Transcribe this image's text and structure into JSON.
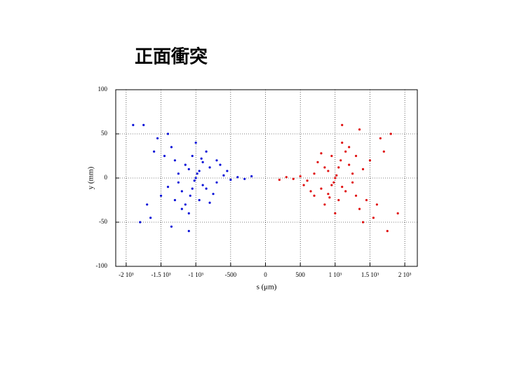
{
  "chart_data": {
    "type": "scatter",
    "title": "正面衝突",
    "xlabel": "s (μm)",
    "ylabel": "y (mm)",
    "xlim": [
      -2150,
      2180
    ],
    "ylim": [
      -100,
      100
    ],
    "xticks": [
      {
        "value": -2000,
        "label": "-2 10³"
      },
      {
        "value": -1500,
        "label": "-1.5 10³"
      },
      {
        "value": -1000,
        "label": "-1 10³"
      },
      -500,
      0,
      500,
      {
        "value": 1000,
        "label": "1 10³"
      },
      {
        "value": 1500,
        "label": "1.5 10³"
      },
      {
        "value": 2000,
        "label": "2 10³"
      }
    ],
    "yticks": [
      -100,
      -50,
      0,
      50,
      100
    ],
    "grid": true,
    "series": [
      {
        "color": "#0a12d8",
        "x": [
          -1000,
          -1100,
          -900,
          -1200,
          -800,
          -1050,
          -950,
          -1300,
          -700,
          -1150,
          -850,
          -1250,
          -600,
          -1400,
          -750,
          -1350,
          -650,
          -1100,
          -1000,
          -500,
          -1450,
          -900,
          -1200,
          -550,
          -1300,
          -800,
          -1500,
          -400,
          -1600,
          -1050,
          -950,
          -1150,
          -850,
          -1250,
          -700,
          -1700,
          -300,
          -1550,
          -1650,
          -1400,
          -1750,
          -1900,
          -1800,
          -1350,
          -1100,
          -200,
          -1020,
          -980,
          -1080,
          -920
        ],
        "values": [
          0,
          10,
          -8,
          -15,
          12,
          25,
          -25,
          20,
          -5,
          -30,
          30,
          5,
          3,
          -10,
          -18,
          35,
          15,
          -40,
          40,
          -2,
          25,
          18,
          -35,
          8,
          -25,
          -28,
          -20,
          1,
          30,
          -12,
          8,
          15,
          -12,
          -5,
          20,
          -30,
          -1,
          45,
          -45,
          50,
          60,
          60,
          -50,
          -55,
          -60,
          2,
          -3,
          5,
          -20,
          22
        ]
      },
      {
        "color": "#e01010",
        "x": [
          1000,
          1100,
          900,
          1200,
          800,
          1050,
          950,
          1300,
          700,
          1150,
          850,
          1250,
          600,
          1400,
          750,
          1350,
          650,
          1100,
          1000,
          500,
          1450,
          900,
          1200,
          550,
          1300,
          800,
          1500,
          400,
          1600,
          1050,
          950,
          1150,
          850,
          1250,
          700,
          1700,
          300,
          1550,
          1650,
          1400,
          1750,
          1900,
          1800,
          1350,
          1100,
          200,
          1020,
          980,
          1080,
          920
        ],
        "values": [
          0,
          -10,
          8,
          15,
          -12,
          -25,
          25,
          -20,
          5,
          30,
          -30,
          -5,
          -3,
          10,
          18,
          -35,
          -15,
          40,
          -40,
          2,
          -25,
          -18,
          35,
          -8,
          25,
          28,
          20,
          -1,
          -30,
          12,
          -8,
          -15,
          12,
          5,
          -20,
          30,
          1,
          -45,
          45,
          -50,
          -60,
          -40,
          50,
          55,
          60,
          -2,
          3,
          -5,
          20,
          -22
        ]
      }
    ]
  }
}
